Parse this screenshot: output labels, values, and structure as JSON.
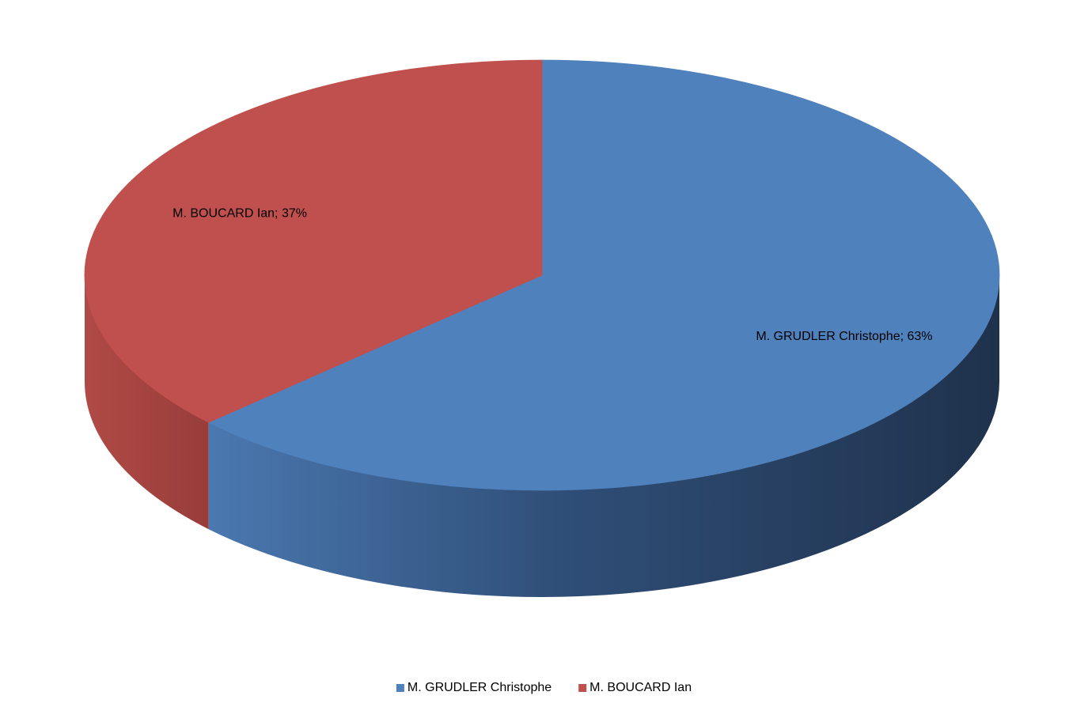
{
  "chart_data": {
    "type": "pie",
    "categories": [
      "M. GRUDLER Christophe",
      "M. BOUCARD Ian"
    ],
    "values": [
      63,
      37
    ],
    "value_labels": [
      "M. GRUDLER Christophe; 63%",
      "M. BOUCARD Ian; 37%"
    ],
    "colors": [
      "#4f81bd",
      "#c0504d"
    ],
    "legend": "bottom"
  }
}
